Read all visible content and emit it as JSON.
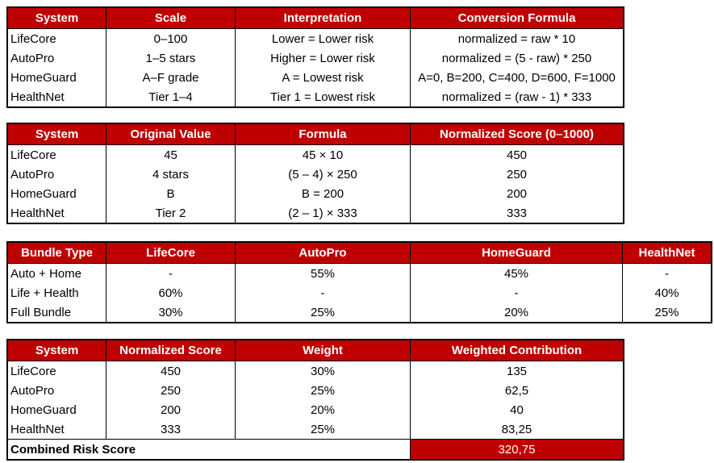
{
  "colors": {
    "header_bg": "#c00000",
    "header_text": "#ffffff",
    "border": "#000000"
  },
  "tables": [
    {
      "name": "system-scales-table",
      "headers": [
        "System",
        "Scale",
        "Interpretation",
        "Conversion Formula"
      ],
      "rows": [
        [
          "LifeCore",
          "0–100",
          "Lower = Lower risk",
          "normalized = raw * 10"
        ],
        [
          "AutoPro",
          "1–5 stars",
          "Higher = Lower risk",
          "normalized = (5 - raw) * 250"
        ],
        [
          "HomeGuard",
          "A–F grade",
          "A = Lowest risk",
          "A=0, B=200, C=400, D=600, F=1000"
        ],
        [
          "HealthNet",
          "Tier 1–4",
          "Tier 1 = Lowest risk",
          "normalized = (raw - 1) * 333"
        ]
      ]
    },
    {
      "name": "normalization-examples-table",
      "headers": [
        "System",
        "Original Value",
        "Formula",
        "Normalized Score (0–1000)"
      ],
      "rows": [
        [
          "LifeCore",
          "45",
          "45 × 10",
          "450"
        ],
        [
          "AutoPro",
          "4 stars",
          "(5 – 4) × 250",
          "250"
        ],
        [
          "HomeGuard",
          "B",
          "B = 200",
          "200"
        ],
        [
          "HealthNet",
          "Tier 2",
          "(2 – 1) × 333",
          "333"
        ]
      ]
    },
    {
      "name": "bundle-weights-table",
      "headers": [
        "Bundle Type",
        "LifeCore",
        "AutoPro",
        "HomeGuard",
        "HealthNet"
      ],
      "rows": [
        [
          "Auto + Home",
          "-",
          "55%",
          "45%",
          "-"
        ],
        [
          "Life + Health",
          "60%",
          "-",
          "-",
          "40%"
        ],
        [
          "Full Bundle",
          "30%",
          "25%",
          "20%",
          "25%"
        ]
      ]
    },
    {
      "name": "weighted-contribution-table",
      "headers": [
        "System",
        "Normalized Score",
        "Weight",
        "Weighted Contribution"
      ],
      "rows": [
        [
          "LifeCore",
          "450",
          "30%",
          "135"
        ],
        [
          "AutoPro",
          "250",
          "25%",
          "62,5"
        ],
        [
          "HomeGuard",
          "200",
          "20%",
          "40"
        ],
        [
          "HealthNet",
          "333",
          "25%",
          "83,25"
        ]
      ],
      "footer": {
        "label": "Combined Risk Score",
        "value": "320,75"
      }
    }
  ]
}
